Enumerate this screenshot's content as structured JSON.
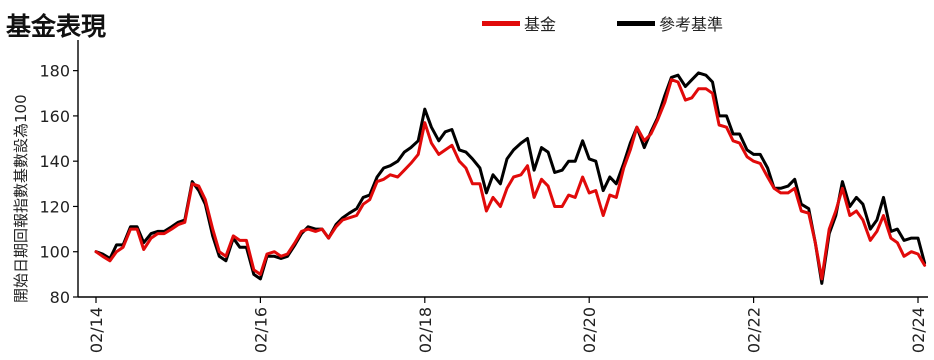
{
  "chart_data": {
    "type": "line",
    "title": "基金表現",
    "ylabel": "開始日期回報指數基數設為100",
    "xlabel": "",
    "ylim": [
      80,
      190
    ],
    "yticks": [
      80,
      100,
      120,
      140,
      160,
      180
    ],
    "xticks": [
      {
        "year": 2014.0,
        "label": "02/14"
      },
      {
        "year": 2016.0,
        "label": "02/16"
      },
      {
        "year": 2018.0,
        "label": "02/18"
      },
      {
        "year": 2020.0,
        "label": "02/20"
      },
      {
        "year": 2022.0,
        "label": "02/22"
      },
      {
        "year": 2024.0,
        "label": "02/24"
      }
    ],
    "legend_position": "top-right",
    "grid": false,
    "series": [
      {
        "name": "基金",
        "color": "#e10a0a",
        "points": [
          [
            2014.0,
            100
          ],
          [
            2014.08,
            98
          ],
          [
            2014.17,
            96
          ],
          [
            2014.25,
            100
          ],
          [
            2014.33,
            102
          ],
          [
            2014.42,
            110
          ],
          [
            2014.5,
            110
          ],
          [
            2014.58,
            101
          ],
          [
            2014.67,
            106
          ],
          [
            2014.75,
            108
          ],
          [
            2014.83,
            108
          ],
          [
            2014.92,
            110
          ],
          [
            2015.0,
            112
          ],
          [
            2015.08,
            113
          ],
          [
            2015.17,
            130
          ],
          [
            2015.25,
            129
          ],
          [
            2015.33,
            123
          ],
          [
            2015.42,
            110
          ],
          [
            2015.5,
            100
          ],
          [
            2015.58,
            98
          ],
          [
            2015.67,
            107
          ],
          [
            2015.75,
            105
          ],
          [
            2015.83,
            105
          ],
          [
            2015.92,
            92
          ],
          [
            2016.0,
            90
          ],
          [
            2016.08,
            99
          ],
          [
            2016.17,
            100
          ],
          [
            2016.25,
            98
          ],
          [
            2016.33,
            99
          ],
          [
            2016.42,
            104
          ],
          [
            2016.5,
            109
          ],
          [
            2016.58,
            110
          ],
          [
            2016.67,
            109
          ],
          [
            2016.75,
            110
          ],
          [
            2016.83,
            106
          ],
          [
            2016.92,
            111
          ],
          [
            2017.0,
            114
          ],
          [
            2017.08,
            115
          ],
          [
            2017.17,
            116
          ],
          [
            2017.25,
            121
          ],
          [
            2017.33,
            123
          ],
          [
            2017.42,
            131
          ],
          [
            2017.5,
            132
          ],
          [
            2017.58,
            134
          ],
          [
            2017.67,
            133
          ],
          [
            2017.75,
            136
          ],
          [
            2017.83,
            139
          ],
          [
            2017.92,
            143
          ],
          [
            2018.0,
            157
          ],
          [
            2018.08,
            148
          ],
          [
            2018.17,
            143
          ],
          [
            2018.25,
            145
          ],
          [
            2018.33,
            147
          ],
          [
            2018.42,
            140
          ],
          [
            2018.5,
            137
          ],
          [
            2018.58,
            130
          ],
          [
            2018.67,
            130
          ],
          [
            2018.75,
            118
          ],
          [
            2018.83,
            124
          ],
          [
            2018.92,
            120
          ],
          [
            2019.0,
            128
          ],
          [
            2019.08,
            133
          ],
          [
            2019.17,
            134
          ],
          [
            2019.25,
            138
          ],
          [
            2019.33,
            124
          ],
          [
            2019.42,
            132
          ],
          [
            2019.5,
            129
          ],
          [
            2019.58,
            120
          ],
          [
            2019.67,
            120
          ],
          [
            2019.75,
            125
          ],
          [
            2019.83,
            124
          ],
          [
            2019.92,
            133
          ],
          [
            2020.0,
            126
          ],
          [
            2020.08,
            127
          ],
          [
            2020.17,
            116
          ],
          [
            2020.25,
            125
          ],
          [
            2020.33,
            124
          ],
          [
            2020.42,
            137
          ],
          [
            2020.5,
            145
          ],
          [
            2020.58,
            155
          ],
          [
            2020.67,
            149
          ],
          [
            2020.75,
            152
          ],
          [
            2020.83,
            158
          ],
          [
            2020.92,
            166
          ],
          [
            2021.0,
            176
          ],
          [
            2021.08,
            175
          ],
          [
            2021.17,
            167
          ],
          [
            2021.25,
            168
          ],
          [
            2021.33,
            172
          ],
          [
            2021.42,
            172
          ],
          [
            2021.5,
            170
          ],
          [
            2021.58,
            156
          ],
          [
            2021.67,
            155
          ],
          [
            2021.75,
            149
          ],
          [
            2021.83,
            148
          ],
          [
            2021.92,
            142
          ],
          [
            2022.0,
            140
          ],
          [
            2022.08,
            139
          ],
          [
            2022.17,
            133
          ],
          [
            2022.25,
            128
          ],
          [
            2022.33,
            126
          ],
          [
            2022.42,
            126
          ],
          [
            2022.5,
            128
          ],
          [
            2022.58,
            118
          ],
          [
            2022.67,
            117
          ],
          [
            2022.75,
            104
          ],
          [
            2022.83,
            88
          ],
          [
            2022.92,
            110
          ],
          [
            2023.0,
            118
          ],
          [
            2023.08,
            128
          ],
          [
            2023.17,
            116
          ],
          [
            2023.25,
            118
          ],
          [
            2023.33,
            114
          ],
          [
            2023.42,
            105
          ],
          [
            2023.5,
            109
          ],
          [
            2023.58,
            116
          ],
          [
            2023.67,
            106
          ],
          [
            2023.75,
            104
          ],
          [
            2023.83,
            98
          ],
          [
            2023.92,
            100
          ],
          [
            2024.0,
            99
          ],
          [
            2024.08,
            94
          ]
        ]
      },
      {
        "name": "參考基準",
        "color": "#000000",
        "points": [
          [
            2014.0,
            100
          ],
          [
            2014.08,
            99
          ],
          [
            2014.17,
            97
          ],
          [
            2014.25,
            103
          ],
          [
            2014.33,
            103
          ],
          [
            2014.42,
            111
          ],
          [
            2014.5,
            111
          ],
          [
            2014.58,
            104
          ],
          [
            2014.67,
            108
          ],
          [
            2014.75,
            109
          ],
          [
            2014.83,
            109
          ],
          [
            2014.92,
            111
          ],
          [
            2015.0,
            113
          ],
          [
            2015.08,
            114
          ],
          [
            2015.17,
            131
          ],
          [
            2015.25,
            127
          ],
          [
            2015.33,
            121
          ],
          [
            2015.42,
            107
          ],
          [
            2015.5,
            98
          ],
          [
            2015.58,
            96
          ],
          [
            2015.67,
            106
          ],
          [
            2015.75,
            102
          ],
          [
            2015.83,
            102
          ],
          [
            2015.92,
            90
          ],
          [
            2016.0,
            88
          ],
          [
            2016.08,
            98
          ],
          [
            2016.17,
            98
          ],
          [
            2016.25,
            97
          ],
          [
            2016.33,
            98
          ],
          [
            2016.42,
            103
          ],
          [
            2016.5,
            108
          ],
          [
            2016.58,
            111
          ],
          [
            2016.67,
            110
          ],
          [
            2016.75,
            110
          ],
          [
            2016.83,
            106
          ],
          [
            2016.92,
            112
          ],
          [
            2017.0,
            115
          ],
          [
            2017.08,
            117
          ],
          [
            2017.17,
            119
          ],
          [
            2017.25,
            124
          ],
          [
            2017.33,
            125
          ],
          [
            2017.42,
            133
          ],
          [
            2017.5,
            137
          ],
          [
            2017.58,
            138
          ],
          [
            2017.67,
            140
          ],
          [
            2017.75,
            144
          ],
          [
            2017.83,
            146
          ],
          [
            2017.92,
            149
          ],
          [
            2018.0,
            163
          ],
          [
            2018.08,
            155
          ],
          [
            2018.17,
            149
          ],
          [
            2018.25,
            153
          ],
          [
            2018.33,
            154
          ],
          [
            2018.42,
            145
          ],
          [
            2018.5,
            144
          ],
          [
            2018.58,
            141
          ],
          [
            2018.67,
            137
          ],
          [
            2018.75,
            126
          ],
          [
            2018.83,
            134
          ],
          [
            2018.92,
            130
          ],
          [
            2019.0,
            141
          ],
          [
            2019.08,
            145
          ],
          [
            2019.17,
            148
          ],
          [
            2019.25,
            150
          ],
          [
            2019.33,
            136
          ],
          [
            2019.42,
            146
          ],
          [
            2019.5,
            144
          ],
          [
            2019.58,
            135
          ],
          [
            2019.67,
            136
          ],
          [
            2019.75,
            140
          ],
          [
            2019.83,
            140
          ],
          [
            2019.92,
            149
          ],
          [
            2020.0,
            141
          ],
          [
            2020.08,
            140
          ],
          [
            2020.17,
            127
          ],
          [
            2020.25,
            133
          ],
          [
            2020.33,
            130
          ],
          [
            2020.42,
            139
          ],
          [
            2020.5,
            148
          ],
          [
            2020.58,
            155
          ],
          [
            2020.67,
            146
          ],
          [
            2020.75,
            153
          ],
          [
            2020.83,
            159
          ],
          [
            2020.92,
            169
          ],
          [
            2021.0,
            177
          ],
          [
            2021.08,
            178
          ],
          [
            2021.17,
            173
          ],
          [
            2021.25,
            176
          ],
          [
            2021.33,
            179
          ],
          [
            2021.42,
            178
          ],
          [
            2021.5,
            175
          ],
          [
            2021.58,
            160
          ],
          [
            2021.67,
            160
          ],
          [
            2021.75,
            152
          ],
          [
            2021.83,
            152
          ],
          [
            2021.92,
            145
          ],
          [
            2022.0,
            143
          ],
          [
            2022.08,
            143
          ],
          [
            2022.17,
            137
          ],
          [
            2022.25,
            128
          ],
          [
            2022.33,
            128
          ],
          [
            2022.42,
            129
          ],
          [
            2022.5,
            132
          ],
          [
            2022.58,
            121
          ],
          [
            2022.67,
            119
          ],
          [
            2022.75,
            104
          ],
          [
            2022.83,
            86
          ],
          [
            2022.92,
            108
          ],
          [
            2023.0,
            116
          ],
          [
            2023.08,
            131
          ],
          [
            2023.17,
            120
          ],
          [
            2023.25,
            124
          ],
          [
            2023.33,
            121
          ],
          [
            2023.42,
            110
          ],
          [
            2023.5,
            114
          ],
          [
            2023.58,
            124
          ],
          [
            2023.67,
            109
          ],
          [
            2023.75,
            110
          ],
          [
            2023.83,
            105
          ],
          [
            2023.92,
            106
          ],
          [
            2024.0,
            106
          ],
          [
            2024.08,
            95
          ]
        ]
      }
    ]
  }
}
